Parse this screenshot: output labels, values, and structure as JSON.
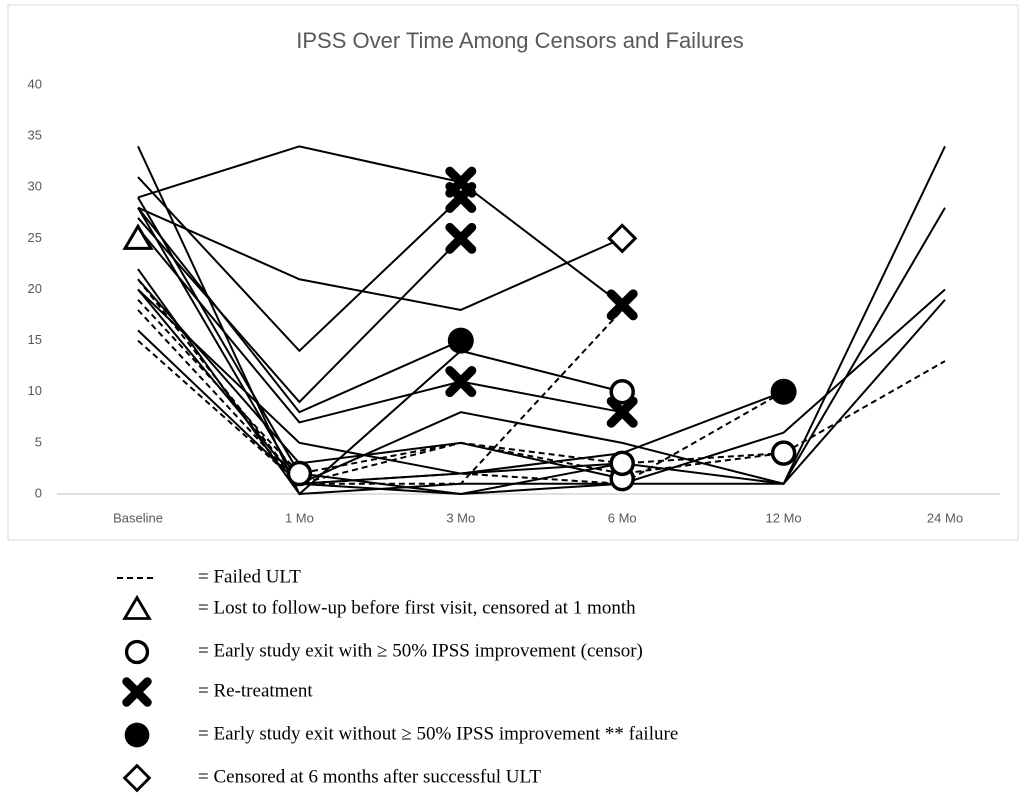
{
  "chart_data": {
    "type": "line",
    "title": "IPSS Over Time Among Censors and Failures",
    "categories": [
      "Baseline",
      "1 Mo",
      "3 Mo",
      "6 Mo",
      "12 Mo",
      "24 Mo"
    ],
    "ylim": [
      0,
      40
    ],
    "yticks": [
      0,
      5,
      10,
      15,
      20,
      25,
      30,
      35,
      40
    ],
    "color": "#000000",
    "series": [
      {
        "style": "solid",
        "values": [
          29,
          34,
          30.5,
          18.5,
          null,
          null
        ],
        "symbols": [
          null,
          null,
          "x",
          "x",
          null,
          null
        ]
      },
      {
        "style": "solid",
        "values": [
          28,
          21,
          18,
          25,
          null,
          null
        ],
        "symbols": [
          null,
          null,
          null,
          "diamond",
          null,
          null
        ]
      },
      {
        "style": "solid",
        "values": [
          31,
          14,
          29,
          null,
          null,
          null
        ],
        "symbols": [
          null,
          null,
          "x",
          null,
          null,
          null
        ]
      },
      {
        "style": "solid",
        "values": [
          27,
          9,
          25,
          null,
          null,
          null
        ],
        "symbols": [
          null,
          null,
          "x",
          null,
          null,
          null
        ]
      },
      {
        "style": "solid",
        "values": [
          28,
          8,
          15,
          null,
          null,
          null
        ],
        "symbols": [
          null,
          null,
          "filled-circle",
          null,
          null,
          null
        ]
      },
      {
        "style": "solid",
        "values": [
          26,
          7,
          11,
          8,
          null,
          null
        ],
        "symbols": [
          null,
          null,
          "x",
          "x",
          null,
          null
        ]
      },
      {
        "style": "solid",
        "values": [
          25,
          null,
          null,
          null,
          null,
          null
        ],
        "symbols": [
          "triangle",
          null,
          null,
          null,
          null,
          null
        ]
      },
      {
        "style": "solid",
        "values": [
          20,
          5,
          2,
          3,
          1,
          28
        ],
        "symbols": [
          null,
          null,
          null,
          null,
          null,
          null
        ]
      },
      {
        "style": "solid",
        "values": [
          34,
          0,
          1,
          1,
          1,
          34
        ],
        "symbols": [
          null,
          null,
          null,
          null,
          null,
          null
        ]
      },
      {
        "style": "solid",
        "values": [
          16,
          1,
          8,
          5,
          1,
          19
        ],
        "symbols": [
          null,
          null,
          null,
          null,
          null,
          null
        ]
      },
      {
        "style": "solid",
        "values": [
          22,
          0,
          14,
          10,
          null,
          null
        ],
        "symbols": [
          null,
          null,
          null,
          "circle",
          null,
          null
        ]
      },
      {
        "style": "solid",
        "values": [
          29,
          2,
          0,
          1,
          6,
          20
        ],
        "symbols": [
          null,
          "circle",
          null,
          null,
          null,
          null
        ]
      },
      {
        "style": "solid",
        "values": [
          21,
          3,
          5,
          1.5,
          null,
          null
        ],
        "symbols": [
          null,
          null,
          null,
          "circle",
          null,
          null
        ]
      },
      {
        "style": "solid",
        "values": [
          28,
          1,
          0,
          3,
          null,
          null
        ],
        "symbols": [
          null,
          null,
          null,
          "circle",
          null,
          null
        ]
      },
      {
        "style": "solid",
        "values": [
          20,
          1,
          2,
          4,
          10,
          null
        ],
        "symbols": [
          null,
          null,
          null,
          null,
          "filled-circle",
          null
        ]
      },
      {
        "style": "dashed",
        "values": [
          21,
          1,
          1,
          18,
          null,
          null
        ],
        "symbols": [
          null,
          null,
          null,
          null,
          null,
          null
        ]
      },
      {
        "style": "dashed",
        "values": [
          15,
          1,
          5,
          2,
          4,
          13
        ],
        "symbols": [
          null,
          null,
          null,
          null,
          null,
          null
        ]
      },
      {
        "style": "dashed",
        "values": [
          18,
          1,
          2,
          1,
          10,
          null
        ],
        "symbols": [
          null,
          null,
          null,
          null,
          null,
          null
        ]
      },
      {
        "style": "dashed",
        "values": [
          19,
          2,
          5,
          3,
          4,
          null
        ],
        "symbols": [
          null,
          null,
          null,
          null,
          "circle",
          null
        ]
      }
    ],
    "legend": [
      {
        "symbol": "dashed",
        "label": "= Failed ULT"
      },
      {
        "symbol": "triangle",
        "label": "= Lost to follow-up before first visit, censored at 1 month"
      },
      {
        "symbol": "circle",
        "label": "= Early study exit with ≥ 50% IPSS improvement (censor)"
      },
      {
        "symbol": "x",
        "label": "= Re-treatment"
      },
      {
        "symbol": "filled-circle",
        "label": "= Early study exit without  ≥ 50% IPSS improvement ** failure"
      },
      {
        "symbol": "diamond",
        "label": "= Censored at 6 months after successful ULT"
      }
    ]
  }
}
